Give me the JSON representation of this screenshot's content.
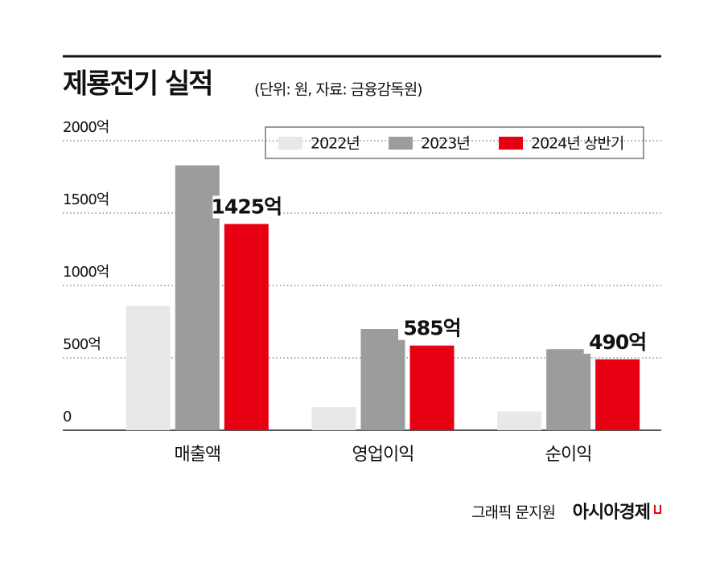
{
  "chart_data": {
    "type": "bar",
    "title": "제룡전기 실적",
    "subtitle": "(단위: 원, 자료: 금융감독원)",
    "categories": [
      "매출액",
      "영업이익",
      "순이익"
    ],
    "series": [
      {
        "name": "2022년",
        "color": "#e8e8e8",
        "values": [
          860,
          160,
          130
        ]
      },
      {
        "name": "2023년",
        "color": "#9c9c9c",
        "values": [
          1830,
          700,
          560
        ]
      },
      {
        "name": "2024년 상반기",
        "color": "#e60012",
        "values": [
          1425,
          585,
          490
        ],
        "value_labels": [
          "1425억",
          "585억",
          "490억"
        ]
      }
    ],
    "ylim": [
      0,
      2000
    ],
    "yticks": [
      0,
      {
        "value": 500,
        "label": "500억"
      },
      {
        "value": 1000,
        "label": "1000억"
      },
      {
        "value": 1500,
        "label": "1500억"
      },
      {
        "value": 2000,
        "label": "2000억"
      }
    ],
    "grid": true,
    "legend": "top-right"
  },
  "footer": {
    "credit": "그래픽 문지원",
    "brand": "아시아경제"
  }
}
